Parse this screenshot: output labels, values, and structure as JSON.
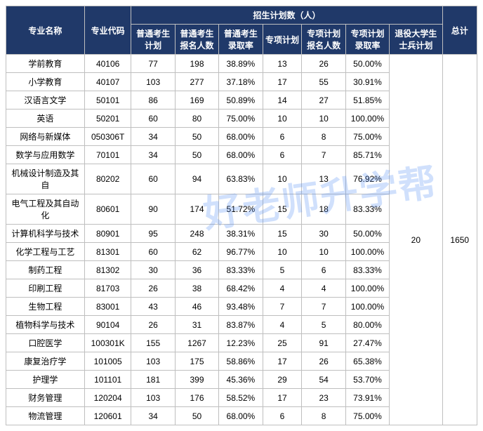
{
  "headers": {
    "major_name": "专业名称",
    "major_code": "专业代码",
    "enrollment_group": "招生计划数（人）",
    "normal_plan": "普通考生计划",
    "normal_apply": "普通考生报名人数",
    "normal_rate": "普通考生录取率",
    "special_plan": "专项计划",
    "special_apply": "专项计划报名人数",
    "special_rate": "专项计划录取率",
    "soldier_plan": "退役大学生士兵计划",
    "total": "总计"
  },
  "rows": [
    {
      "name": "学前教育",
      "code": "40106",
      "nplan": "77",
      "napply": "198",
      "nrate": "38.89%",
      "splan": "13",
      "sapply": "26",
      "srate": "50.00%"
    },
    {
      "name": "小学教育",
      "code": "40107",
      "nplan": "103",
      "napply": "277",
      "nrate": "37.18%",
      "splan": "17",
      "sapply": "55",
      "srate": "30.91%"
    },
    {
      "name": "汉语言文学",
      "code": "50101",
      "nplan": "86",
      "napply": "169",
      "nrate": "50.89%",
      "splan": "14",
      "sapply": "27",
      "srate": "51.85%"
    },
    {
      "name": "英语",
      "code": "50201",
      "nplan": "60",
      "napply": "80",
      "nrate": "75.00%",
      "splan": "10",
      "sapply": "10",
      "srate": "100.00%"
    },
    {
      "name": "网络与新媒体",
      "code": "050306T",
      "nplan": "34",
      "napply": "50",
      "nrate": "68.00%",
      "splan": "6",
      "sapply": "8",
      "srate": "75.00%"
    },
    {
      "name": "数学与应用数学",
      "code": "70101",
      "nplan": "34",
      "napply": "50",
      "nrate": "68.00%",
      "splan": "6",
      "sapply": "7",
      "srate": "85.71%"
    },
    {
      "name": "机械设计制造及其自",
      "code": "80202",
      "nplan": "60",
      "napply": "94",
      "nrate": "63.83%",
      "splan": "10",
      "sapply": "13",
      "srate": "76.92%"
    },
    {
      "name": "电气工程及其自动化",
      "code": "80601",
      "nplan": "90",
      "napply": "174",
      "nrate": "51.72%",
      "splan": "15",
      "sapply": "18",
      "srate": "83.33%"
    },
    {
      "name": "计算机科学与技术",
      "code": "80901",
      "nplan": "95",
      "napply": "248",
      "nrate": "38.31%",
      "splan": "15",
      "sapply": "30",
      "srate": "50.00%"
    },
    {
      "name": "化学工程与工艺",
      "code": "81301",
      "nplan": "60",
      "napply": "62",
      "nrate": "96.77%",
      "splan": "10",
      "sapply": "10",
      "srate": "100.00%"
    },
    {
      "name": "制药工程",
      "code": "81302",
      "nplan": "30",
      "napply": "36",
      "nrate": "83.33%",
      "splan": "5",
      "sapply": "6",
      "srate": "83.33%"
    },
    {
      "name": "印刷工程",
      "code": "81703",
      "nplan": "26",
      "napply": "38",
      "nrate": "68.42%",
      "splan": "4",
      "sapply": "4",
      "srate": "100.00%"
    },
    {
      "name": "生物工程",
      "code": "83001",
      "nplan": "43",
      "napply": "46",
      "nrate": "93.48%",
      "splan": "7",
      "sapply": "7",
      "srate": "100.00%"
    },
    {
      "name": "植物科学与技术",
      "code": "90104",
      "nplan": "26",
      "napply": "31",
      "nrate": "83.87%",
      "splan": "4",
      "sapply": "5",
      "srate": "80.00%"
    },
    {
      "name": "口腔医学",
      "code": "100301K",
      "nplan": "155",
      "napply": "1267",
      "nrate": "12.23%",
      "splan": "25",
      "sapply": "91",
      "srate": "27.47%"
    },
    {
      "name": "康复治疗学",
      "code": "101005",
      "nplan": "103",
      "napply": "175",
      "nrate": "58.86%",
      "splan": "17",
      "sapply": "26",
      "srate": "65.38%"
    },
    {
      "name": "护理学",
      "code": "101101",
      "nplan": "181",
      "napply": "399",
      "nrate": "45.36%",
      "splan": "29",
      "sapply": "54",
      "srate": "53.70%"
    },
    {
      "name": "财务管理",
      "code": "120204",
      "nplan": "103",
      "napply": "176",
      "nrate": "58.52%",
      "splan": "17",
      "sapply": "23",
      "srate": "73.91%"
    },
    {
      "name": "物流管理",
      "code": "120601",
      "nplan": "34",
      "napply": "50",
      "nrate": "68.00%",
      "splan": "6",
      "sapply": "8",
      "srate": "75.00%"
    }
  ],
  "soldier_plan_value": "20",
  "total_value": "1650",
  "watermark_text": "好老师升学帮",
  "colors": {
    "header_bg": "#203969",
    "header_fg": "#ffffff",
    "border": "#bfbfbf",
    "cell_bg": "#ffffff",
    "cell_fg": "#000000",
    "watermark": "rgba(66,133,244,0.25)"
  },
  "row_count": 19
}
